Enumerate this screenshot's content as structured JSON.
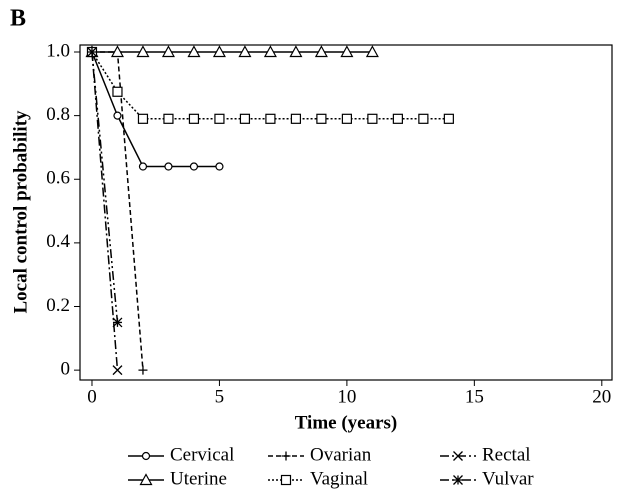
{
  "chart_data": {
    "type": "line",
    "panel_label": "B",
    "x_label": "Time (years)",
    "y_label": "Local control probability",
    "xlim": [
      -0.47,
      20.4
    ],
    "ylim": [
      -0.031,
      1.022
    ],
    "xticks": [
      0,
      5,
      10,
      15,
      20
    ],
    "yticks": [
      0,
      0.2,
      0.4,
      0.6,
      0.8,
      {
        "value": 1,
        "label": "1.0"
      }
    ],
    "series": [
      {
        "name": "Cervical",
        "color": "#000000",
        "dash": "solid",
        "marker": "circle",
        "x": [
          0,
          1,
          2,
          3,
          4,
          5
        ],
        "values": [
          1,
          0.8,
          0.64,
          0.64,
          0.64,
          0.64
        ]
      },
      {
        "name": "Ovarian",
        "color": "#000000",
        "dash": "dashed",
        "marker": "plus",
        "x": [
          0,
          1,
          2
        ],
        "values": [
          1,
          1,
          0
        ]
      },
      {
        "name": "Rectal",
        "color": "#000000",
        "dash": "dashdot",
        "marker": "x",
        "x": [
          0,
          1
        ],
        "values": [
          1,
          0
        ]
      },
      {
        "name": "Uterine",
        "color": "#000000",
        "dash": "solid",
        "marker": "triangle",
        "x": [
          0,
          1,
          2,
          3,
          4,
          5,
          6,
          7,
          8,
          9,
          10,
          11
        ],
        "values": [
          1,
          1,
          1,
          1,
          1,
          1,
          1,
          1,
          1,
          1,
          1,
          1
        ]
      },
      {
        "name": "Vaginal",
        "color": "#000000",
        "dash": "dotted",
        "marker": "square",
        "x": [
          0,
          1,
          2,
          3,
          4,
          5,
          6,
          7,
          8,
          9,
          10,
          11,
          12,
          13,
          14
        ],
        "values": [
          1,
          0.875,
          0.79,
          0.79,
          0.79,
          0.79,
          0.79,
          0.79,
          0.79,
          0.79,
          0.79,
          0.79,
          0.79,
          0.79,
          0.79
        ]
      },
      {
        "name": "Vulvar",
        "color": "#000000",
        "dash": "dashdotdot",
        "marker": "star",
        "x": [
          0,
          1
        ],
        "values": [
          1,
          0.15
        ]
      }
    ]
  }
}
